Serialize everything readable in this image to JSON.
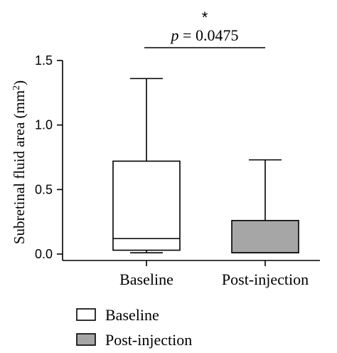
{
  "chart_data": {
    "type": "box",
    "ylabel": "Subretinal fluid area (mm²)",
    "ylabel_text": "Subretinal fluid area (mm",
    "ylabel_sup": "2",
    "ylabel_close": ")",
    "ylim": [
      0,
      1.5
    ],
    "yticks": [
      0.0,
      0.5,
      1.0,
      1.5
    ],
    "ytick_labels": [
      "0.0",
      "0.5",
      "1.0",
      "1.5"
    ],
    "categories": [
      "Baseline",
      "Post-injection"
    ],
    "series": [
      {
        "name": "Baseline",
        "color": "#ffffff",
        "min": 0.01,
        "q1": 0.03,
        "median": 0.12,
        "q3": 0.72,
        "max": 1.36
      },
      {
        "name": "Post-injection",
        "color": "#a6a6a6",
        "min": 0.01,
        "q1": 0.01,
        "median": 0.01,
        "q3": 0.26,
        "max": 0.73
      }
    ],
    "annotation": {
      "star": "*",
      "p_symbol": "p",
      "p_value": " = 0.0475"
    },
    "legend": {
      "placement": "bottom-left",
      "entries": [
        "Baseline",
        "Post-injection"
      ]
    }
  }
}
